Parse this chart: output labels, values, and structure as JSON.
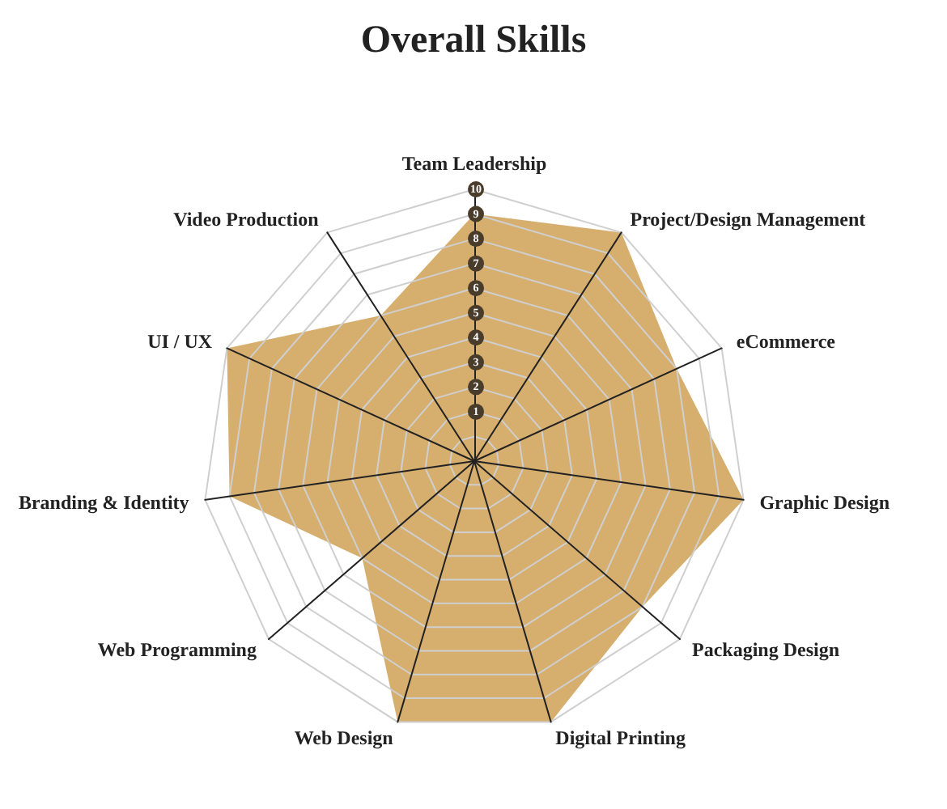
{
  "chart_data": {
    "type": "radar",
    "title": "Overall Skills",
    "categories": [
      "Team Leadership",
      "Project/Design Management",
      "eCommerce",
      "Graphic Design",
      "Packaging Design",
      "Digital Printing",
      "Web Design",
      "Web Programming",
      "Branding & Identity",
      "UI / UX",
      "Video Production"
    ],
    "series": [
      {
        "color": "#d4aa66",
        "values": [
          9,
          10,
          8,
          10,
          8,
          10,
          10,
          5,
          9,
          10,
          6
        ]
      }
    ],
    "ylim": [
      -1,
      10
    ],
    "yticks": [
      1,
      2,
      3,
      4,
      5,
      6,
      7,
      8,
      9,
      10
    ],
    "grid": true
  }
}
